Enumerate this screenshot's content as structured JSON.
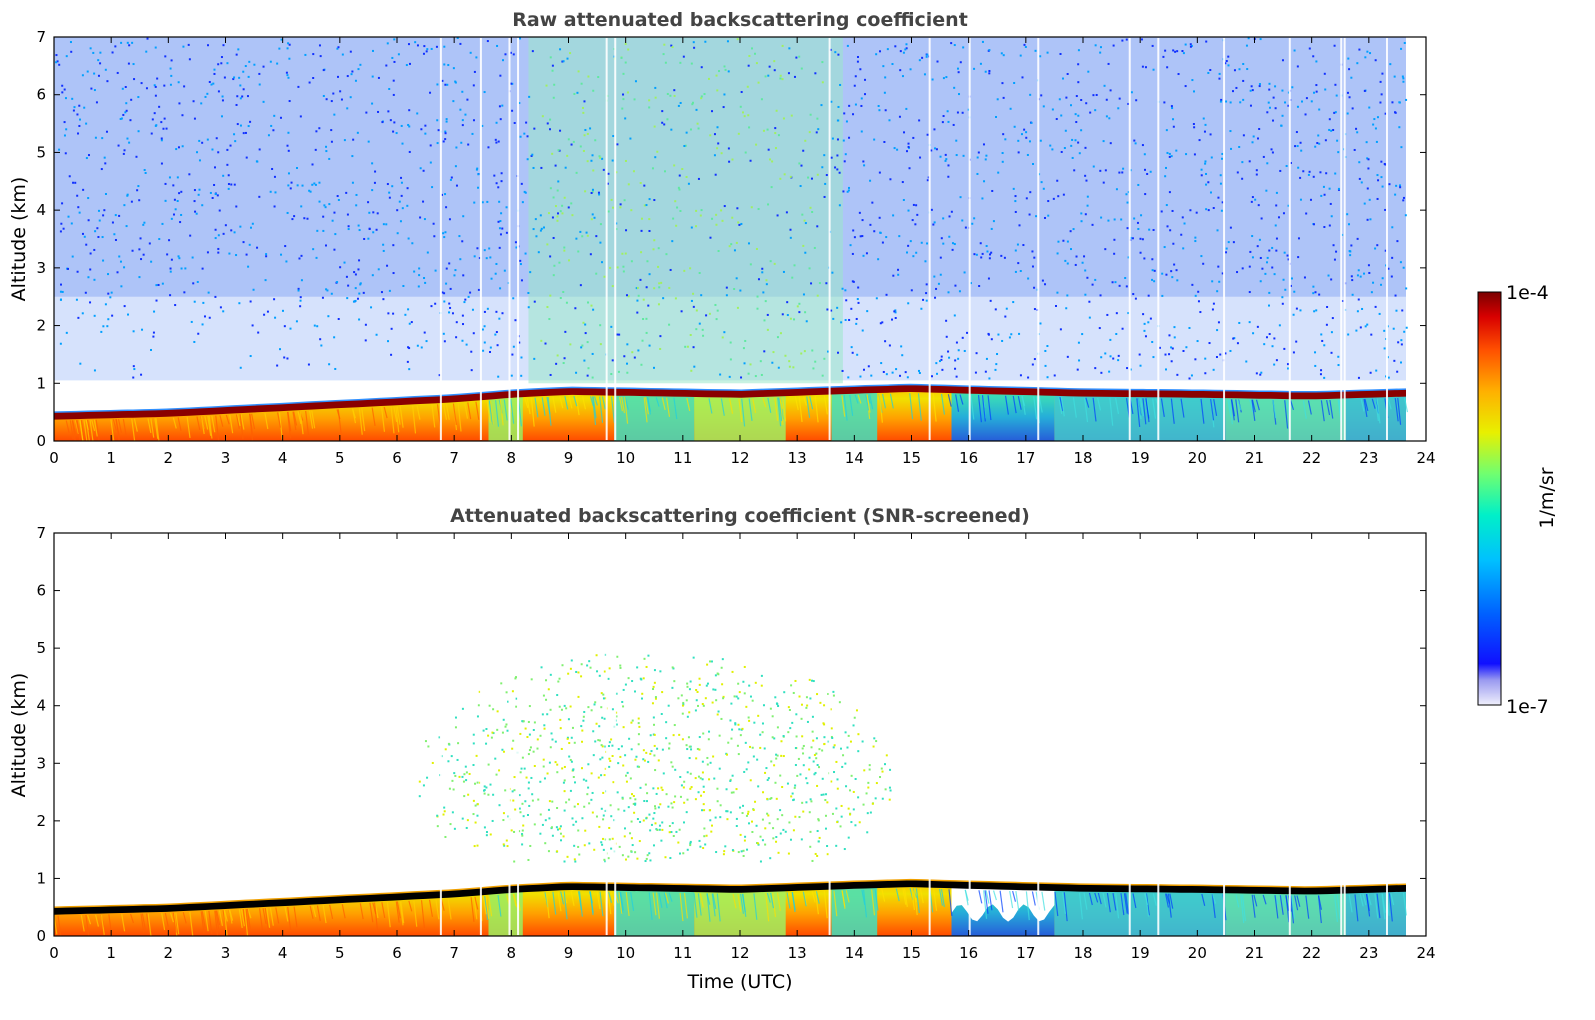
{
  "chart_data": [
    {
      "type": "heatmap",
      "title": "Raw attenuated backscattering coefficient",
      "xlabel": "",
      "ylabel": "Altitude (km)",
      "xlim": [
        0,
        24
      ],
      "ylim": [
        0,
        7
      ],
      "xticks": [
        "0",
        "1",
        "2",
        "3",
        "4",
        "5",
        "6",
        "7",
        "8",
        "9",
        "10",
        "11",
        "12",
        "13",
        "14",
        "15",
        "16",
        "17",
        "18",
        "19",
        "20",
        "21",
        "22",
        "23",
        "24"
      ],
      "yticks": [
        "0",
        "1",
        "2",
        "3",
        "4",
        "5",
        "6",
        "7"
      ],
      "data_end_hour": 23.65,
      "boundary_layer_top_km": {
        "hours": [
          0,
          2,
          4,
          6,
          7,
          8,
          9,
          12,
          14,
          15,
          16,
          18,
          20,
          22,
          23.65
        ],
        "altitude": [
          0.5,
          0.55,
          0.65,
          0.75,
          0.8,
          0.88,
          0.93,
          0.88,
          0.95,
          0.98,
          0.95,
          0.9,
          0.88,
          0.85,
          0.9
        ]
      },
      "screened": false
    },
    {
      "type": "heatmap",
      "title": "Attenuated backscattering coefficient (SNR-screened)",
      "xlabel": "Time (UTC)",
      "ylabel": "Altitude (km)",
      "xlim": [
        0,
        24
      ],
      "ylim": [
        0,
        7
      ],
      "xticks": [
        "0",
        "1",
        "2",
        "3",
        "4",
        "5",
        "6",
        "7",
        "8",
        "9",
        "10",
        "11",
        "12",
        "13",
        "14",
        "15",
        "16",
        "17",
        "18",
        "19",
        "20",
        "21",
        "22",
        "23",
        "24"
      ],
      "yticks": [
        "0",
        "1",
        "2",
        "3",
        "4",
        "5",
        "6",
        "7"
      ],
      "data_end_hour": 23.65,
      "boundary_layer_top_km": {
        "hours": [
          0,
          2,
          4,
          6,
          7,
          8,
          9,
          12,
          14,
          15,
          16,
          18,
          20,
          22,
          23.65
        ],
        "altitude": [
          0.5,
          0.55,
          0.65,
          0.75,
          0.8,
          0.88,
          0.93,
          0.88,
          0.95,
          0.98,
          0.95,
          0.9,
          0.88,
          0.85,
          0.9
        ]
      },
      "screened": true
    }
  ],
  "colorbar": {
    "label": "1/m/sr",
    "max_label": "1e-4",
    "min_label": "1e-7",
    "colors": [
      "#e8e8f8",
      "#a8a8f0",
      "#1818ff",
      "#0070ff",
      "#00c8ff",
      "#00f0c0",
      "#80ff60",
      "#f0f000",
      "#ffb000",
      "#ff5000",
      "#e00000",
      "#800000"
    ]
  }
}
